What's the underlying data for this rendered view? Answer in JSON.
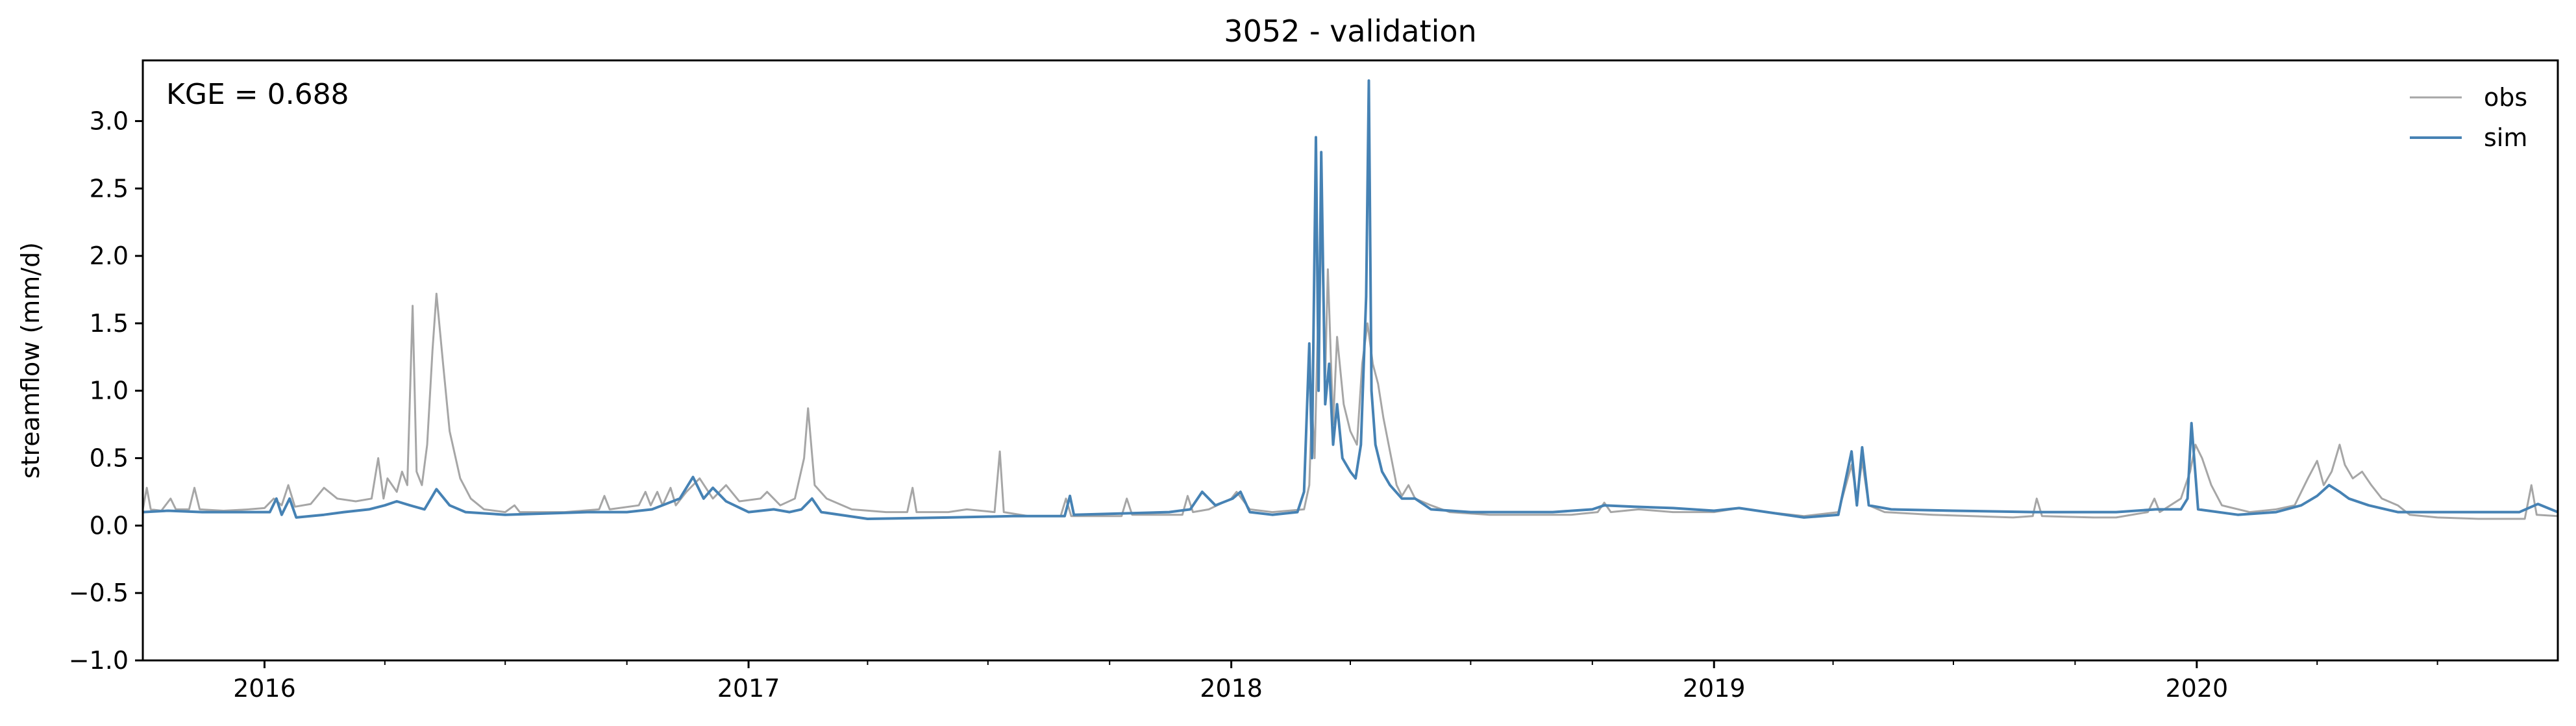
{
  "chart_data": {
    "type": "line",
    "title": "3052 - validation",
    "xlabel": "",
    "ylabel": "streamflow (mm/d)",
    "xlim": [
      "2015-10-01",
      "2020-09-30"
    ],
    "ylim": [
      -1.0,
      3.45
    ],
    "yticks": [
      -1.0,
      -0.5,
      0.0,
      0.5,
      1.0,
      1.5,
      2.0,
      2.5,
      3.0
    ],
    "ytick_labels": [
      "−1.0",
      "−0.5",
      "0.0",
      "0.5",
      "1.0",
      "1.5",
      "2.0",
      "2.5",
      "3.0"
    ],
    "xticks": [
      "2016-01-01",
      "2017-01-01",
      "2018-01-01",
      "2019-01-01",
      "2020-01-01"
    ],
    "xtick_labels": [
      "2016",
      "2017",
      "2018",
      "2019",
      "2020"
    ],
    "grid": false,
    "legend_position": "top-right",
    "annotation": "KGE = 0.688",
    "series": [
      {
        "name": "obs",
        "color": "#a6a6a6",
        "points": [
          [
            "2015-10-01",
            0.12
          ],
          [
            "2015-10-04",
            0.28
          ],
          [
            "2015-10-07",
            0.12
          ],
          [
            "2015-10-15",
            0.11
          ],
          [
            "2015-10-22",
            0.2
          ],
          [
            "2015-10-26",
            0.12
          ],
          [
            "2015-11-05",
            0.12
          ],
          [
            "2015-11-09",
            0.28
          ],
          [
            "2015-11-13",
            0.12
          ],
          [
            "2015-12-01",
            0.11
          ],
          [
            "2015-12-20",
            0.12
          ],
          [
            "2016-01-01",
            0.13
          ],
          [
            "2016-01-08",
            0.2
          ],
          [
            "2016-01-14",
            0.15
          ],
          [
            "2016-01-19",
            0.3
          ],
          [
            "2016-01-24",
            0.14
          ],
          [
            "2016-02-05",
            0.16
          ],
          [
            "2016-02-15",
            0.28
          ],
          [
            "2016-02-25",
            0.2
          ],
          [
            "2016-03-10",
            0.18
          ],
          [
            "2016-03-22",
            0.2
          ],
          [
            "2016-03-27",
            0.5
          ],
          [
            "2016-03-31",
            0.2
          ],
          [
            "2016-04-03",
            0.35
          ],
          [
            "2016-04-10",
            0.25
          ],
          [
            "2016-04-14",
            0.4
          ],
          [
            "2016-04-18",
            0.3
          ],
          [
            "2016-04-22",
            1.63
          ],
          [
            "2016-04-25",
            0.4
          ],
          [
            "2016-04-29",
            0.3
          ],
          [
            "2016-05-03",
            0.6
          ],
          [
            "2016-05-07",
            1.3
          ],
          [
            "2016-05-10",
            1.72
          ],
          [
            "2016-05-15",
            1.2
          ],
          [
            "2016-05-20",
            0.7
          ],
          [
            "2016-05-28",
            0.35
          ],
          [
            "2016-06-05",
            0.2
          ],
          [
            "2016-06-15",
            0.12
          ],
          [
            "2016-07-01",
            0.1
          ],
          [
            "2016-07-08",
            0.15
          ],
          [
            "2016-07-12",
            0.1
          ],
          [
            "2016-08-15",
            0.1
          ],
          [
            "2016-09-10",
            0.12
          ],
          [
            "2016-09-14",
            0.22
          ],
          [
            "2016-09-18",
            0.12
          ],
          [
            "2016-10-10",
            0.15
          ],
          [
            "2016-10-15",
            0.25
          ],
          [
            "2016-10-19",
            0.15
          ],
          [
            "2016-10-24",
            0.25
          ],
          [
            "2016-10-28",
            0.15
          ],
          [
            "2016-11-03",
            0.28
          ],
          [
            "2016-11-07",
            0.15
          ],
          [
            "2016-11-15",
            0.25
          ],
          [
            "2016-11-25",
            0.35
          ],
          [
            "2016-12-05",
            0.2
          ],
          [
            "2016-12-15",
            0.3
          ],
          [
            "2016-12-25",
            0.18
          ],
          [
            "2017-01-10",
            0.2
          ],
          [
            "2017-01-15",
            0.25
          ],
          [
            "2017-01-25",
            0.15
          ],
          [
            "2017-02-05",
            0.2
          ],
          [
            "2017-02-12",
            0.5
          ],
          [
            "2017-02-15",
            0.87
          ],
          [
            "2017-02-20",
            0.3
          ],
          [
            "2017-03-01",
            0.2
          ],
          [
            "2017-03-20",
            0.12
          ],
          [
            "2017-04-15",
            0.1
          ],
          [
            "2017-05-01",
            0.1
          ],
          [
            "2017-05-05",
            0.28
          ],
          [
            "2017-05-08",
            0.1
          ],
          [
            "2017-06-01",
            0.1
          ],
          [
            "2017-06-15",
            0.12
          ],
          [
            "2017-07-06",
            0.1
          ],
          [
            "2017-07-10",
            0.55
          ],
          [
            "2017-07-13",
            0.1
          ],
          [
            "2017-08-01",
            0.07
          ],
          [
            "2017-08-25",
            0.07
          ],
          [
            "2017-08-29",
            0.2
          ],
          [
            "2017-09-02",
            0.07
          ],
          [
            "2017-10-10",
            0.07
          ],
          [
            "2017-10-14",
            0.2
          ],
          [
            "2017-10-18",
            0.08
          ],
          [
            "2017-11-25",
            0.08
          ],
          [
            "2017-11-29",
            0.22
          ],
          [
            "2017-12-03",
            0.1
          ],
          [
            "2017-12-15",
            0.12
          ],
          [
            "2018-01-01",
            0.2
          ],
          [
            "2018-01-05",
            0.25
          ],
          [
            "2018-01-15",
            0.12
          ],
          [
            "2018-02-01",
            0.1
          ],
          [
            "2018-02-25",
            0.12
          ],
          [
            "2018-03-01",
            0.3
          ],
          [
            "2018-03-03",
            0.9
          ],
          [
            "2018-03-05",
            0.5
          ],
          [
            "2018-03-07",
            1.3
          ],
          [
            "2018-03-10",
            2.3
          ],
          [
            "2018-03-13",
            1.1
          ],
          [
            "2018-03-15",
            1.9
          ],
          [
            "2018-03-19",
            0.75
          ],
          [
            "2018-03-22",
            1.4
          ],
          [
            "2018-03-27",
            0.9
          ],
          [
            "2018-04-01",
            0.7
          ],
          [
            "2018-04-06",
            0.6
          ],
          [
            "2018-04-10",
            1.2
          ],
          [
            "2018-04-14",
            1.5
          ],
          [
            "2018-04-18",
            1.2
          ],
          [
            "2018-04-22",
            1.05
          ],
          [
            "2018-04-26",
            0.8
          ],
          [
            "2018-05-01",
            0.55
          ],
          [
            "2018-05-06",
            0.3
          ],
          [
            "2018-05-10",
            0.22
          ],
          [
            "2018-05-15",
            0.3
          ],
          [
            "2018-05-20",
            0.2
          ],
          [
            "2018-06-01",
            0.15
          ],
          [
            "2018-06-15",
            0.1
          ],
          [
            "2018-07-15",
            0.08
          ],
          [
            "2018-09-15",
            0.08
          ],
          [
            "2018-10-05",
            0.1
          ],
          [
            "2018-10-10",
            0.17
          ],
          [
            "2018-10-15",
            0.1
          ],
          [
            "2018-11-05",
            0.12
          ],
          [
            "2018-12-01",
            0.1
          ],
          [
            "2019-01-01",
            0.1
          ],
          [
            "2019-01-20",
            0.13
          ],
          [
            "2019-02-10",
            0.1
          ],
          [
            "2019-03-10",
            0.07
          ],
          [
            "2019-04-05",
            0.1
          ],
          [
            "2019-04-15",
            0.45
          ],
          [
            "2019-04-19",
            0.2
          ],
          [
            "2019-04-23",
            0.48
          ],
          [
            "2019-04-28",
            0.15
          ],
          [
            "2019-05-10",
            0.1
          ],
          [
            "2019-06-15",
            0.08
          ],
          [
            "2019-07-15",
            0.07
          ],
          [
            "2019-08-15",
            0.06
          ],
          [
            "2019-08-30",
            0.07
          ],
          [
            "2019-09-02",
            0.2
          ],
          [
            "2019-09-06",
            0.07
          ],
          [
            "2019-10-15",
            0.06
          ],
          [
            "2019-11-01",
            0.06
          ],
          [
            "2019-11-25",
            0.1
          ],
          [
            "2019-11-30",
            0.2
          ],
          [
            "2019-12-04",
            0.1
          ],
          [
            "2019-12-20",
            0.2
          ],
          [
            "2019-12-27",
            0.4
          ],
          [
            "2019-12-31",
            0.6
          ],
          [
            "2020-01-05",
            0.5
          ],
          [
            "2020-01-12",
            0.3
          ],
          [
            "2020-01-20",
            0.15
          ],
          [
            "2020-02-10",
            0.1
          ],
          [
            "2020-03-01",
            0.12
          ],
          [
            "2020-03-15",
            0.15
          ],
          [
            "2020-03-25",
            0.35
          ],
          [
            "2020-04-01",
            0.48
          ],
          [
            "2020-04-06",
            0.3
          ],
          [
            "2020-04-12",
            0.4
          ],
          [
            "2020-04-18",
            0.6
          ],
          [
            "2020-04-22",
            0.45
          ],
          [
            "2020-04-28",
            0.35
          ],
          [
            "2020-05-05",
            0.4
          ],
          [
            "2020-05-12",
            0.3
          ],
          [
            "2020-05-20",
            0.2
          ],
          [
            "2020-06-01",
            0.15
          ],
          [
            "2020-06-10",
            0.08
          ],
          [
            "2020-07-01",
            0.06
          ],
          [
            "2020-08-01",
            0.05
          ],
          [
            "2020-09-05",
            0.05
          ],
          [
            "2020-09-10",
            0.3
          ],
          [
            "2020-09-14",
            0.08
          ],
          [
            "2020-09-30",
            0.07
          ]
        ]
      },
      {
        "name": "sim",
        "color": "#4682b4",
        "points": [
          [
            "2015-10-01",
            0.1
          ],
          [
            "2015-10-20",
            0.11
          ],
          [
            "2015-11-15",
            0.1
          ],
          [
            "2015-12-15",
            0.1
          ],
          [
            "2016-01-05",
            0.1
          ],
          [
            "2016-01-10",
            0.2
          ],
          [
            "2016-01-14",
            0.08
          ],
          [
            "2016-01-20",
            0.2
          ],
          [
            "2016-01-25",
            0.06
          ],
          [
            "2016-02-15",
            0.08
          ],
          [
            "2016-03-01",
            0.1
          ],
          [
            "2016-03-20",
            0.12
          ],
          [
            "2016-04-01",
            0.15
          ],
          [
            "2016-04-10",
            0.18
          ],
          [
            "2016-04-20",
            0.15
          ],
          [
            "2016-05-01",
            0.12
          ],
          [
            "2016-05-10",
            0.27
          ],
          [
            "2016-05-20",
            0.15
          ],
          [
            "2016-06-01",
            0.1
          ],
          [
            "2016-07-01",
            0.08
          ],
          [
            "2016-09-01",
            0.1
          ],
          [
            "2016-10-01",
            0.1
          ],
          [
            "2016-10-20",
            0.12
          ],
          [
            "2016-11-10",
            0.2
          ],
          [
            "2016-11-20",
            0.36
          ],
          [
            "2016-11-28",
            0.2
          ],
          [
            "2016-12-05",
            0.28
          ],
          [
            "2016-12-15",
            0.18
          ],
          [
            "2017-01-01",
            0.1
          ],
          [
            "2017-01-20",
            0.12
          ],
          [
            "2017-02-01",
            0.1
          ],
          [
            "2017-02-10",
            0.12
          ],
          [
            "2017-02-18",
            0.2
          ],
          [
            "2017-02-25",
            0.1
          ],
          [
            "2017-04-01",
            0.05
          ],
          [
            "2017-06-01",
            0.06
          ],
          [
            "2017-07-20",
            0.07
          ],
          [
            "2017-08-28",
            0.07
          ],
          [
            "2017-09-01",
            0.22
          ],
          [
            "2017-09-04",
            0.08
          ],
          [
            "2017-11-15",
            0.1
          ],
          [
            "2017-12-01",
            0.12
          ],
          [
            "2017-12-10",
            0.25
          ],
          [
            "2017-12-20",
            0.15
          ],
          [
            "2018-01-02",
            0.2
          ],
          [
            "2018-01-08",
            0.25
          ],
          [
            "2018-01-15",
            0.1
          ],
          [
            "2018-02-01",
            0.08
          ],
          [
            "2018-02-20",
            0.1
          ],
          [
            "2018-02-25",
            0.25
          ],
          [
            "2018-03-01",
            1.35
          ],
          [
            "2018-03-03",
            0.5
          ],
          [
            "2018-03-06",
            2.88
          ],
          [
            "2018-03-08",
            1.0
          ],
          [
            "2018-03-10",
            2.77
          ],
          [
            "2018-03-13",
            0.9
          ],
          [
            "2018-03-16",
            1.2
          ],
          [
            "2018-03-19",
            0.6
          ],
          [
            "2018-03-22",
            0.9
          ],
          [
            "2018-03-26",
            0.5
          ],
          [
            "2018-04-01",
            0.4
          ],
          [
            "2018-04-05",
            0.35
          ],
          [
            "2018-04-09",
            0.6
          ],
          [
            "2018-04-13",
            1.7
          ],
          [
            "2018-04-15",
            3.3
          ],
          [
            "2018-04-17",
            1.0
          ],
          [
            "2018-04-20",
            0.6
          ],
          [
            "2018-04-25",
            0.4
          ],
          [
            "2018-05-01",
            0.3
          ],
          [
            "2018-05-10",
            0.2
          ],
          [
            "2018-05-20",
            0.2
          ],
          [
            "2018-06-01",
            0.12
          ],
          [
            "2018-07-01",
            0.1
          ],
          [
            "2018-09-01",
            0.1
          ],
          [
            "2018-10-01",
            0.12
          ],
          [
            "2018-10-10",
            0.15
          ],
          [
            "2018-11-01",
            0.14
          ],
          [
            "2018-12-01",
            0.13
          ],
          [
            "2019-01-01",
            0.11
          ],
          [
            "2019-01-20",
            0.13
          ],
          [
            "2019-02-10",
            0.1
          ],
          [
            "2019-03-10",
            0.06
          ],
          [
            "2019-04-05",
            0.08
          ],
          [
            "2019-04-15",
            0.55
          ],
          [
            "2019-04-19",
            0.15
          ],
          [
            "2019-04-23",
            0.58
          ],
          [
            "2019-04-28",
            0.15
          ],
          [
            "2019-05-15",
            0.12
          ],
          [
            "2019-07-01",
            0.11
          ],
          [
            "2019-09-01",
            0.1
          ],
          [
            "2019-11-01",
            0.1
          ],
          [
            "2019-12-01",
            0.12
          ],
          [
            "2019-12-20",
            0.12
          ],
          [
            "2019-12-25",
            0.2
          ],
          [
            "2019-12-28",
            0.76
          ],
          [
            "2020-01-02",
            0.12
          ],
          [
            "2020-02-01",
            0.08
          ],
          [
            "2020-03-01",
            0.1
          ],
          [
            "2020-03-20",
            0.15
          ],
          [
            "2020-04-01",
            0.22
          ],
          [
            "2020-04-10",
            0.3
          ],
          [
            "2020-04-18",
            0.25
          ],
          [
            "2020-04-25",
            0.2
          ],
          [
            "2020-05-10",
            0.15
          ],
          [
            "2020-06-01",
            0.1
          ],
          [
            "2020-09-01",
            0.1
          ],
          [
            "2020-09-15",
            0.16
          ],
          [
            "2020-09-30",
            0.1
          ]
        ]
      }
    ]
  }
}
